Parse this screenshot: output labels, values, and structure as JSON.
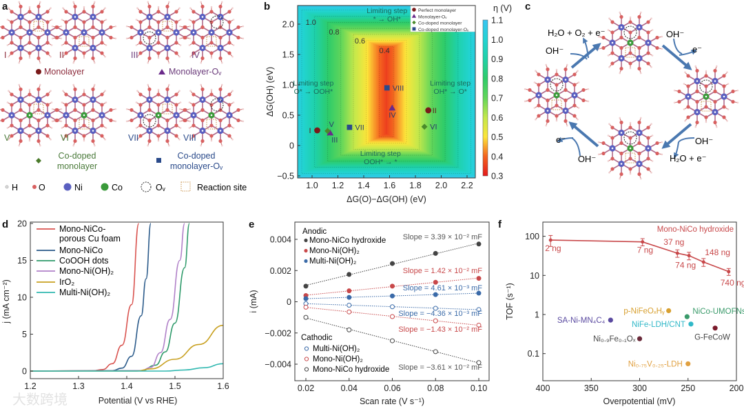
{
  "panel_letters": {
    "a": "a",
    "b": "b",
    "c": "c",
    "d": "d",
    "e": "e",
    "f": "f"
  },
  "watermark": "大数跨境",
  "diagrams": {
    "panel_a": {
      "structures": [
        {
          "label": "I",
          "co": false,
          "vacancy": false,
          "color": "#8b2a3a"
        },
        {
          "label": "II",
          "co": false,
          "vacancy": false,
          "color": "#8b2a3a"
        },
        {
          "label": "III",
          "co": false,
          "vacancy": true,
          "color": "#6a3a7a"
        },
        {
          "label": "IV",
          "co": false,
          "vacancy": true,
          "color": "#6a3a7a"
        },
        {
          "label": "V",
          "co": true,
          "vacancy": false,
          "color": "#4a7a3a"
        },
        {
          "label": "VI",
          "co": true,
          "vacancy": false,
          "color": "#4a7a3a"
        },
        {
          "label": "VII",
          "co": true,
          "vacancy": true,
          "color": "#2a4a8a"
        },
        {
          "label": "VIII",
          "co": true,
          "vacancy": true,
          "color": "#2a4a8a"
        }
      ],
      "groups": {
        "monolayer": "Monolayer",
        "monolayer_ov": "Monolayer-Oᵥ",
        "codoped_1": "Co-doped",
        "codoped_2": "monolayer",
        "codoped_ov_1": "Co-doped",
        "codoped_ov_2": "monolayer-Oᵥ"
      },
      "legend": {
        "h": "H",
        "o": "O",
        "ni": "Ni",
        "co": "Co",
        "ov": "Oᵥ",
        "site": "Reaction site"
      }
    },
    "panel_c": {
      "labels": {
        "tl_top": "H₂O + O₂ + e⁻",
        "tl_in": "OH⁻",
        "tr_in": "OH⁻",
        "tr_out": "e⁻",
        "br_in": "OH⁻",
        "br_out": "H₂O + e⁻",
        "bl_out": "e⁻",
        "bl_in": "OH⁻"
      },
      "arrow_color": "#4a78b0"
    }
  },
  "colors": {
    "ni": "#5a5fc0",
    "o": "#d86060",
    "co": "#3a9a3a",
    "site": "#c8904a"
  },
  "chart_data": [
    {
      "id": "b",
      "type": "heatmap",
      "title": "",
      "xlabel": "ΔG(O)−ΔG(OH) (eV)",
      "ylabel": "ΔG(OH) (eV)",
      "xlim": [
        0.89,
        2.27
      ],
      "ylim": [
        -0.53,
        2.31
      ],
      "xticks": [
        1.0,
        1.2,
        1.4,
        1.6,
        1.8,
        2.0,
        2.2
      ],
      "xtick_labels": [
        "1.0",
        "1.2",
        "1.4",
        "1.6",
        "1.8",
        "2.0",
        "2.2"
      ],
      "yticks": [
        2.0,
        1.5,
        1.0,
        0.5,
        0,
        -0.5
      ],
      "ytick_labels": [
        "2.0",
        "1.5",
        "1.0",
        "0.5",
        "0",
        "−0.5"
      ],
      "colorbar": {
        "label": "η (V)",
        "range": [
          0.3,
          1.1
        ],
        "ticks": [
          1.1,
          1.0,
          0.9,
          0.8,
          0.7,
          0.6,
          0.5,
          0.4,
          0.3
        ],
        "tick_labels": [
          "1.1",
          "1.0",
          "0.9",
          "0.8",
          "0.7",
          "0.6",
          "0.5",
          "0.4",
          "0.3"
        ],
        "stops": [
          [
            0.3,
            "#e41a1c"
          ],
          [
            0.4,
            "#f4631f"
          ],
          [
            0.5,
            "#fde53a"
          ],
          [
            0.6,
            "#c3e84b"
          ],
          [
            0.7,
            "#62d65a"
          ],
          [
            0.8,
            "#2ecc6a"
          ],
          [
            0.9,
            "#1fd1a8"
          ],
          [
            1.0,
            "#22d3d3"
          ],
          [
            1.1,
            "#38c4f2"
          ]
        ]
      },
      "contour_labels": [
        {
          "value": 1.0,
          "text": "1.0",
          "at": [
            0.95,
            1.99
          ]
        },
        {
          "value": 0.8,
          "text": "0.8",
          "at": [
            1.13,
            1.83
          ]
        },
        {
          "value": 0.6,
          "text": "0.6",
          "at": [
            1.33,
            1.68
          ]
        },
        {
          "value": 0.4,
          "text": "0.4",
          "at": [
            1.52,
            1.52
          ]
        }
      ],
      "annotations": [
        {
          "line1": "Limiting step",
          "line2": "* → OH*",
          "at": [
            1.58,
            2.18
          ]
        },
        {
          "line1": "Limiting step",
          "line2": "O* → OOH*",
          "at": [
            1.01,
            0.99
          ]
        },
        {
          "line1": "Limiting step",
          "line2": "OH* → O*",
          "at": [
            2.07,
            0.99
          ]
        },
        {
          "line1": "Limiting step",
          "line2": "OOH* → *",
          "at": [
            1.53,
            -0.17
          ]
        }
      ],
      "legend": {
        "placement": "top-right",
        "items": [
          {
            "name": "Perfect monolayer",
            "marker": "circle",
            "color": "#7a1a1a"
          },
          {
            "name": "Monolayer-Oᵥ",
            "marker": "triangle",
            "color": "#6a2a8a"
          },
          {
            "name": "Co-doped monolayer",
            "marker": "diamond",
            "color": "#4a8a2a"
          },
          {
            "name": "Co-doped monolayer-Oᵥ",
            "marker": "square",
            "color": "#2a4a8a"
          }
        ]
      },
      "points": [
        {
          "label": "I",
          "x": 1.04,
          "y": 0.25,
          "group": 0
        },
        {
          "label": "II",
          "x": 1.9,
          "y": 0.58,
          "group": 0
        },
        {
          "label": "III",
          "x": 1.14,
          "y": 0.21,
          "group": 1
        },
        {
          "label": "IV",
          "x": 1.62,
          "y": 0.62,
          "group": 1
        },
        {
          "label": "V",
          "x": 1.12,
          "y": 0.24,
          "group": 2
        },
        {
          "label": "VI",
          "x": 1.87,
          "y": 0.31,
          "group": 2
        },
        {
          "label": "VII",
          "x": 1.29,
          "y": 0.3,
          "group": 3
        },
        {
          "label": "VIII",
          "x": 1.58,
          "y": 0.95,
          "group": 3
        }
      ]
    },
    {
      "id": "d",
      "type": "line",
      "xlabel": "Potential (V vs RHE)",
      "ylabel": "j (mA cm⁻²)",
      "xlim": [
        1.2,
        1.6
      ],
      "ylim": [
        -1,
        20
      ],
      "xticks": [
        1.2,
        1.3,
        1.4,
        1.5,
        1.6
      ],
      "xtick_labels": [
        "1.2",
        "1.3",
        "1.4",
        "1.5",
        "1.6"
      ],
      "yticks": [
        0,
        5,
        10,
        15,
        20
      ],
      "ytick_labels": [
        "0",
        "5",
        "10",
        "15",
        "20"
      ],
      "legend": {
        "placement": "top-left"
      },
      "series": [
        {
          "name": "Mono-NiCo-",
          "name2": "porous Cu foam",
          "color": "#d9534f",
          "points": [
            [
              1.2,
              0
            ],
            [
              1.33,
              0.05
            ],
            [
              1.35,
              0.2
            ],
            [
              1.37,
              1
            ],
            [
              1.39,
              3.5
            ],
            [
              1.41,
              9
            ],
            [
              1.425,
              20
            ]
          ]
        },
        {
          "name": "Mono-NiCo",
          "color": "#2a5a8a",
          "points": [
            [
              1.2,
              0
            ],
            [
              1.37,
              0.05
            ],
            [
              1.39,
              0.4
            ],
            [
              1.41,
              2
            ],
            [
              1.43,
              7.5
            ],
            [
              1.44,
              12.5
            ],
            [
              1.45,
              20
            ]
          ]
        },
        {
          "name": "CoOOH dots",
          "color": "#2e9a6a",
          "points": [
            [
              1.2,
              0
            ],
            [
              1.43,
              0.05
            ],
            [
              1.46,
              0.8
            ],
            [
              1.48,
              2.6
            ],
            [
              1.5,
              6.5
            ],
            [
              1.52,
              14
            ],
            [
              1.53,
              20
            ]
          ]
        },
        {
          "name": "Mono-Ni(OH)₂",
          "color": "#b080c8",
          "points": [
            [
              1.2,
              0
            ],
            [
              1.43,
              0.05
            ],
            [
              1.45,
              0.5
            ],
            [
              1.47,
              2.5
            ],
            [
              1.49,
              7
            ],
            [
              1.51,
              15
            ],
            [
              1.52,
              20
            ]
          ]
        },
        {
          "name": "IrO₂",
          "color": "#c8a020",
          "points": [
            [
              1.2,
              0
            ],
            [
              1.42,
              0
            ],
            [
              1.45,
              0.3
            ],
            [
              1.5,
              1.6
            ],
            [
              1.55,
              3.6
            ],
            [
              1.6,
              6.2
            ]
          ]
        },
        {
          "name": "Multi-Ni(OH)₂",
          "color": "#30b8b0",
          "points": [
            [
              1.2,
              0
            ],
            [
              1.48,
              0
            ],
            [
              1.52,
              0.15
            ],
            [
              1.56,
              0.45
            ],
            [
              1.6,
              1.0
            ]
          ]
        }
      ]
    },
    {
      "id": "e",
      "type": "scatter",
      "xlabel": "Scan rate (V s⁻¹)",
      "ylabel": "i (mA)",
      "xlim": [
        0.015,
        0.104
      ],
      "ylim": [
        -0.005,
        0.0047
      ],
      "x": [
        0.02,
        0.04,
        0.06,
        0.08,
        0.1
      ],
      "xtick_labels": [
        "0.02",
        "0.04",
        "0.06",
        "0.08",
        "0.10"
      ],
      "yticks": [
        0.004,
        0.002,
        0,
        -0.002,
        -0.004
      ],
      "ytick_labels": [
        "0.004",
        "0.002",
        "0",
        "−0.002",
        "−0.004"
      ],
      "legend_anodic_title": "Anodic",
      "legend_cathodic_title": "Cathodic",
      "series": [
        {
          "name": "Mono-NiCo hydroxide",
          "kind": "anodic",
          "color": "#444444",
          "values": [
            0.001,
            0.00175,
            0.00245,
            0.0031,
            0.0037
          ],
          "slope": "Slope = 3.39 × 10⁻² mF"
        },
        {
          "name": "Mono-Ni(OH)₂",
          "kind": "anodic",
          "color": "#c8484a",
          "values": [
            0.0004,
            0.0007,
            0.001,
            0.00125,
            0.0015
          ],
          "slope": "Slope = 1.42 × 10⁻² mF"
        },
        {
          "name": "Multi-Ni(OH)₂",
          "kind": "anodic",
          "color": "#3a6aa8",
          "values": [
            0.0002,
            0.00028,
            0.00037,
            0.00046,
            0.00055
          ],
          "slope": "Slope = 4.61 × 10⁻³ mF"
        },
        {
          "name": "Multi-Ni(OH)₂",
          "kind": "cathodic",
          "color": "#3a6aa8",
          "values": [
            -0.00012,
            -0.00022,
            -0.00032,
            -0.00042,
            -0.0005
          ],
          "slope": "Slope = −4.36 × 10⁻³ mF"
        },
        {
          "name": "Mono-Ni(OH)₂",
          "kind": "cathodic",
          "color": "#c8484a",
          "values": [
            -0.00035,
            -0.00065,
            -0.00095,
            -0.00122,
            -0.0015
          ],
          "slope": "Slope = −1.43 × 10⁻² mF"
        },
        {
          "name": "Mono-NiCo hydroxide",
          "kind": "cathodic",
          "color": "#444444",
          "values": [
            -0.001,
            -0.0018,
            -0.0025,
            -0.0032,
            -0.0039
          ],
          "slope": "Slope = −3.61 × 10⁻² mF"
        }
      ]
    },
    {
      "id": "f",
      "type": "scatter",
      "xlabel": "Overpotential (mV)",
      "ylabel": "TOF (s⁻¹)",
      "xlim": [
        400,
        200
      ],
      "ylim": [
        0.02,
        200
      ],
      "yscale": "log",
      "xticks": [
        400,
        350,
        300,
        250,
        200
      ],
      "xtick_labels": [
        "400",
        "350",
        "300",
        "250",
        "200"
      ],
      "yticks": [
        100,
        10,
        1,
        0.1
      ],
      "ytick_labels": [
        "100",
        "10",
        "1",
        "0.1"
      ],
      "main_series": {
        "name": "Mono-NiCo hydroxide",
        "color": "#c8484a",
        "points": [
          {
            "x": 392,
            "y": 80,
            "err": 25,
            "label": "2 ng"
          },
          {
            "x": 297,
            "y": 72,
            "err": 15,
            "label": "7 ng"
          },
          {
            "x": 261,
            "y": 37,
            "err": 8,
            "label": "37 ng"
          },
          {
            "x": 249,
            "y": 32,
            "err": 7,
            "label": "74 ng"
          },
          {
            "x": 234,
            "y": 22,
            "err": 5,
            "label": "148 ng"
          },
          {
            "x": 208,
            "y": 12.5,
            "err": 2.5,
            "label": "740 ng"
          }
        ]
      },
      "references": [
        {
          "name": "SA-Ni-MN₄C₄",
          "x": 330,
          "y": 0.72,
          "color": "#5a4aa0"
        },
        {
          "name": "p-NiFeOₓHᵧ",
          "x": 270,
          "y": 1.25,
          "color": "#d8a030"
        },
        {
          "name": "NiCo-UMOFNs",
          "x": 251,
          "y": 0.88,
          "color": "#3a9a6a"
        },
        {
          "name": "NiFe-LDH/CNT",
          "x": 247,
          "y": 0.57,
          "color": "#30b8c8"
        },
        {
          "name": "G-FeCoW",
          "x": 222,
          "y": 0.45,
          "color": "#7a1a2a"
        },
        {
          "name": "Ni₀.₉Fe₀.₁Oₓ",
          "x": 300,
          "y": 0.24,
          "color": "#6a2a3a"
        },
        {
          "name": "Ni₀.₇₅V₀.₂₅-LDH",
          "x": 250,
          "y": 0.055,
          "color": "#e0a040"
        }
      ]
    }
  ]
}
